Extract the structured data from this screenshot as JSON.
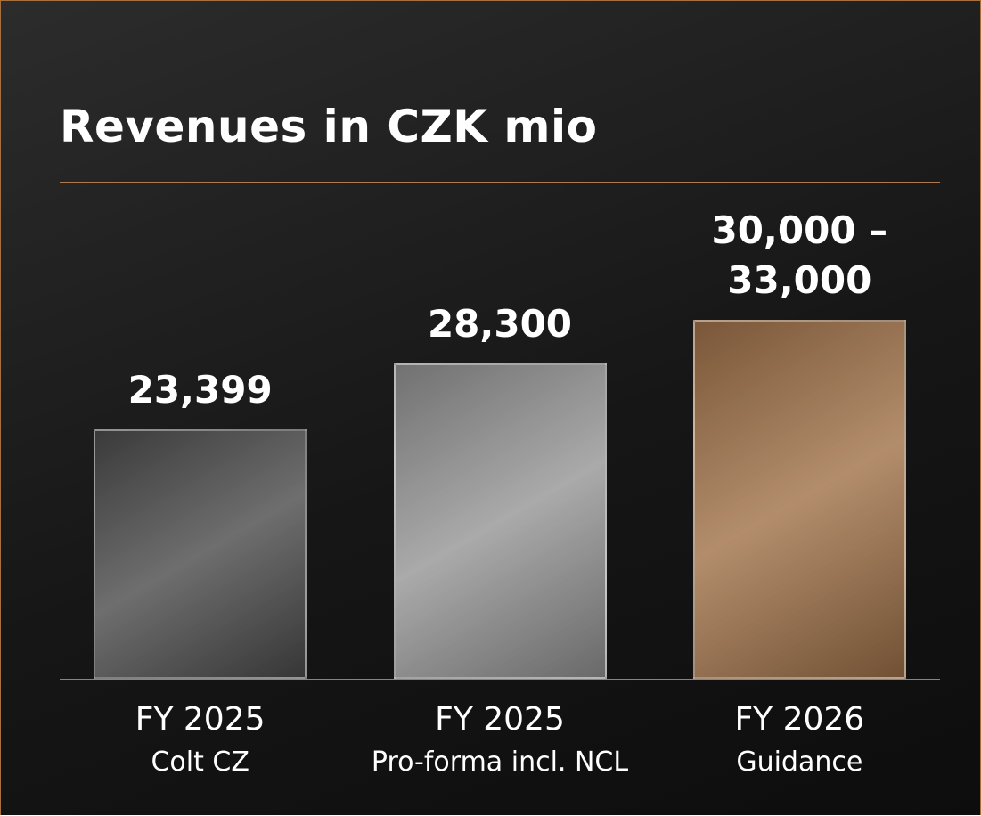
{
  "chart_data": {
    "type": "bar",
    "title": "Revenues in CZK mio",
    "categories": [
      "FY 2025",
      "FY 2025",
      "FY 2026"
    ],
    "category_sublabels": [
      "Colt CZ",
      "Pro-forma incl. NCL",
      "Guidance"
    ],
    "values": [
      23399,
      28300,
      [
        30000,
        33000
      ]
    ],
    "value_labels": [
      "23,399",
      "28,300",
      "30,000 – 33,000"
    ],
    "colors": [
      "#4e4e4e",
      "#979797",
      "#a2744b"
    ],
    "ylim": [
      5000,
      33000
    ]
  }
}
